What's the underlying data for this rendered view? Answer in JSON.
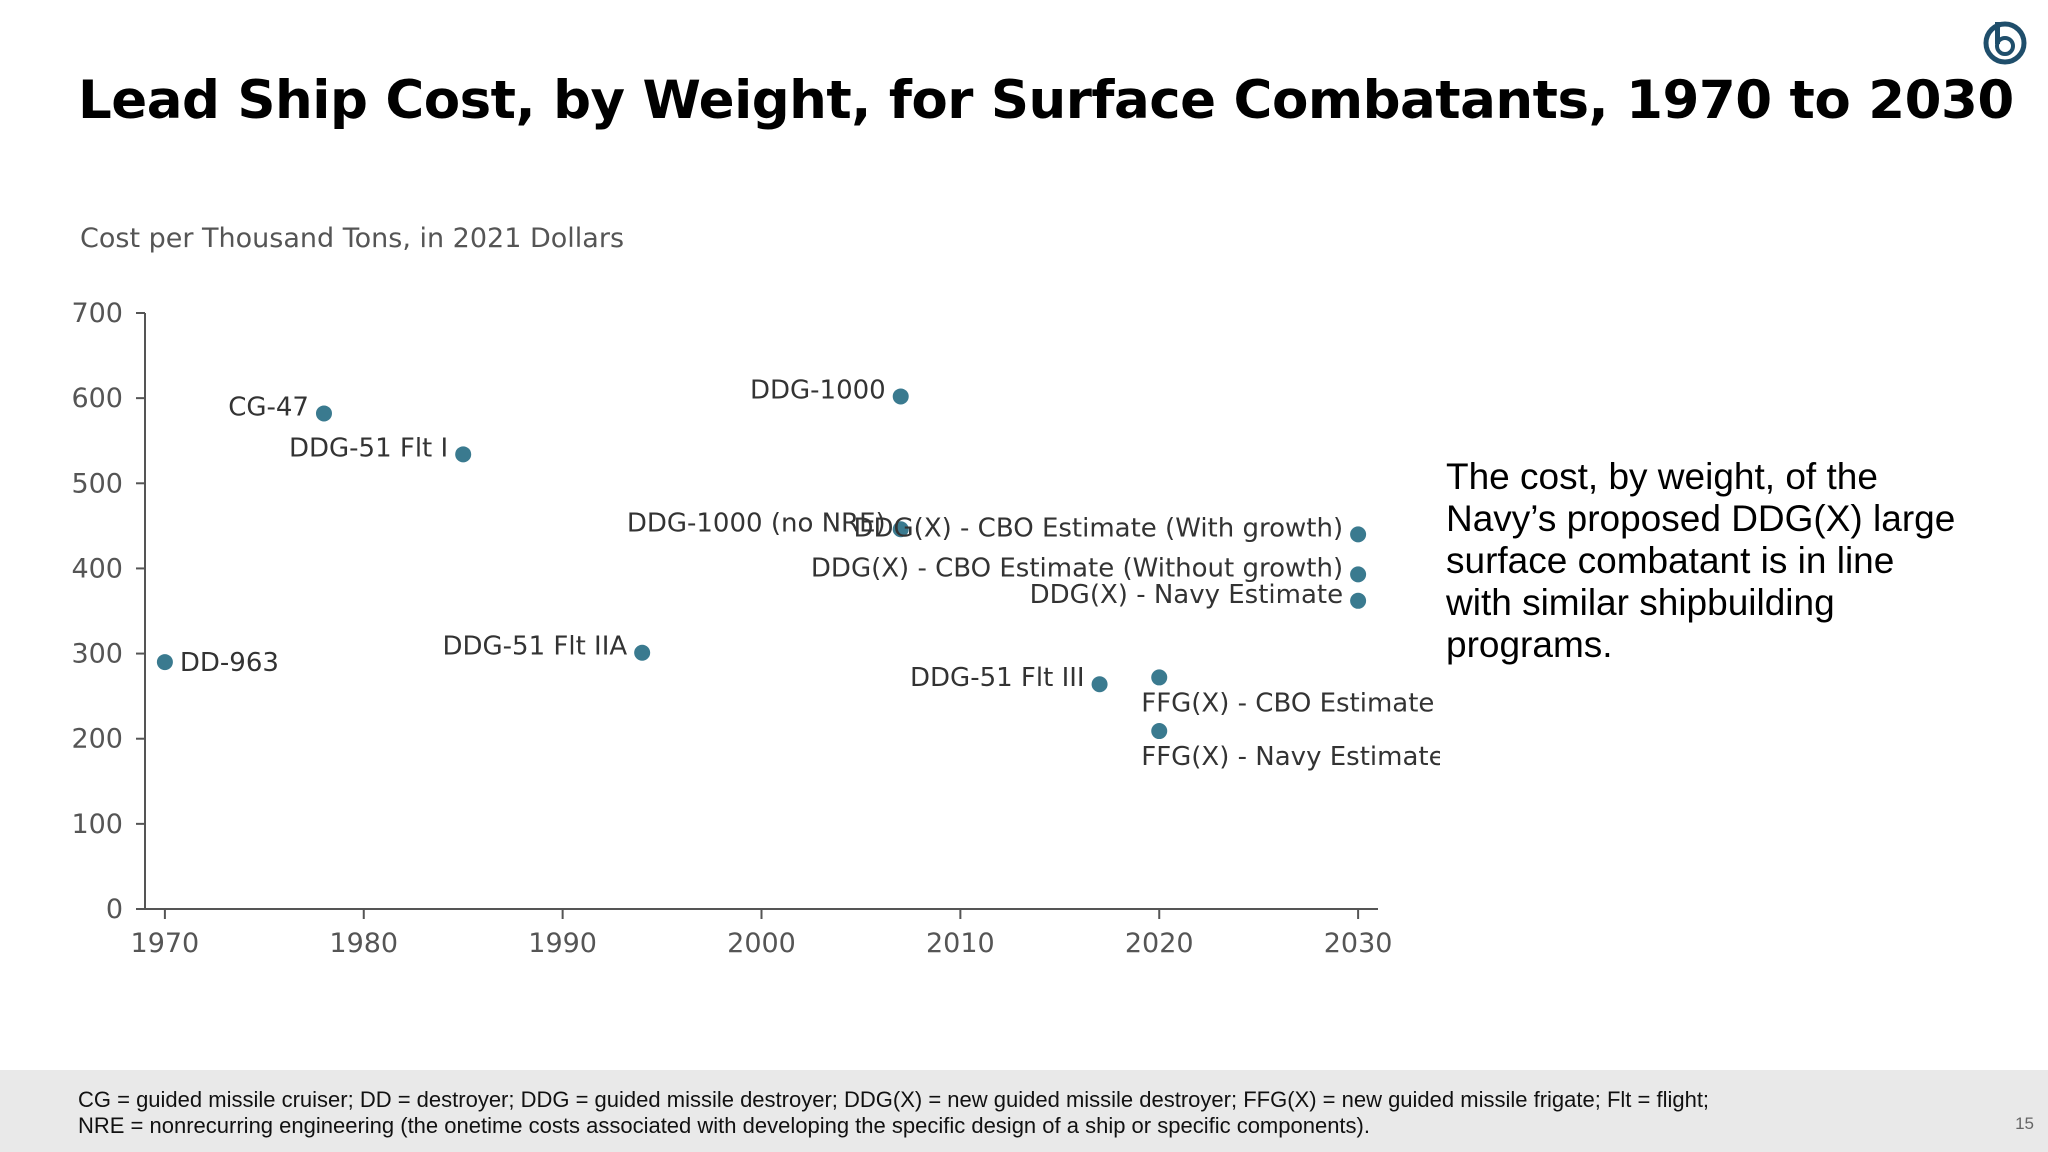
{
  "slide": {
    "title": "Lead Ship Cost, by Weight, for Surface Combatants, 1970 to 2030",
    "callout": "The cost, by weight, of the Navy’s proposed DDG(X) large surface combatant is in line with similar shipbuilding programs.",
    "footnote_lines": [
      "CG = guided missile cruiser; DD = destroyer; DDG = guided missile destroyer; DDG(X) = new guided missile destroyer; FFG(X) = new guided missile frigate; Flt = flight;",
      "NRE = nonrecurring engineering (the onetime costs associated with developing the specific design of a ship or specific components)."
    ],
    "page_number": "15",
    "logo_icon": "cbo-logo-icon"
  },
  "chart_data": {
    "type": "scatter",
    "title": "",
    "ylabel": "Cost per Thousand Tons, in 2021 Dollars",
    "xlabel": "",
    "xlim": [
      1969,
      2031
    ],
    "ylim": [
      0,
      700
    ],
    "x_ticks": [
      1970,
      1980,
      1990,
      2000,
      2010,
      2020,
      2030
    ],
    "y_ticks": [
      0,
      100,
      200,
      300,
      400,
      500,
      600,
      700
    ],
    "grid": false,
    "point_color": "#3a7a8f",
    "points": [
      {
        "label": "DD-963",
        "x": 1970,
        "y": 290,
        "label_side": "right"
      },
      {
        "label": "CG-47",
        "x": 1978,
        "y": 582,
        "label_side": "left"
      },
      {
        "label": "DDG-51 Flt I",
        "x": 1985,
        "y": 534,
        "label_side": "left"
      },
      {
        "label": "DDG-51 Flt IIA",
        "x": 1994,
        "y": 301,
        "label_side": "left"
      },
      {
        "label": "DDG-1000",
        "x": 2007,
        "y": 602,
        "label_side": "left"
      },
      {
        "label": "DDG-1000 (no NRE)",
        "x": 2007,
        "y": 446,
        "label_side": "left"
      },
      {
        "label": "DDG-51 Flt III",
        "x": 2017,
        "y": 264,
        "label_side": "left"
      },
      {
        "label": "FFG(X) - CBO Estimate",
        "x": 2020,
        "y": 272,
        "label_side": "below"
      },
      {
        "label": "FFG(X) - Navy Estimate",
        "x": 2020,
        "y": 209,
        "label_side": "below"
      },
      {
        "label": "DDG(X) - CBO Estimate (With growth)",
        "x": 2030,
        "y": 440,
        "label_side": "left"
      },
      {
        "label": "DDG(X) - CBO Estimate (Without growth)",
        "x": 2030,
        "y": 393,
        "label_side": "left"
      },
      {
        "label": "DDG(X) - Navy Estimate",
        "x": 2030,
        "y": 362,
        "label_side": "left"
      }
    ]
  }
}
